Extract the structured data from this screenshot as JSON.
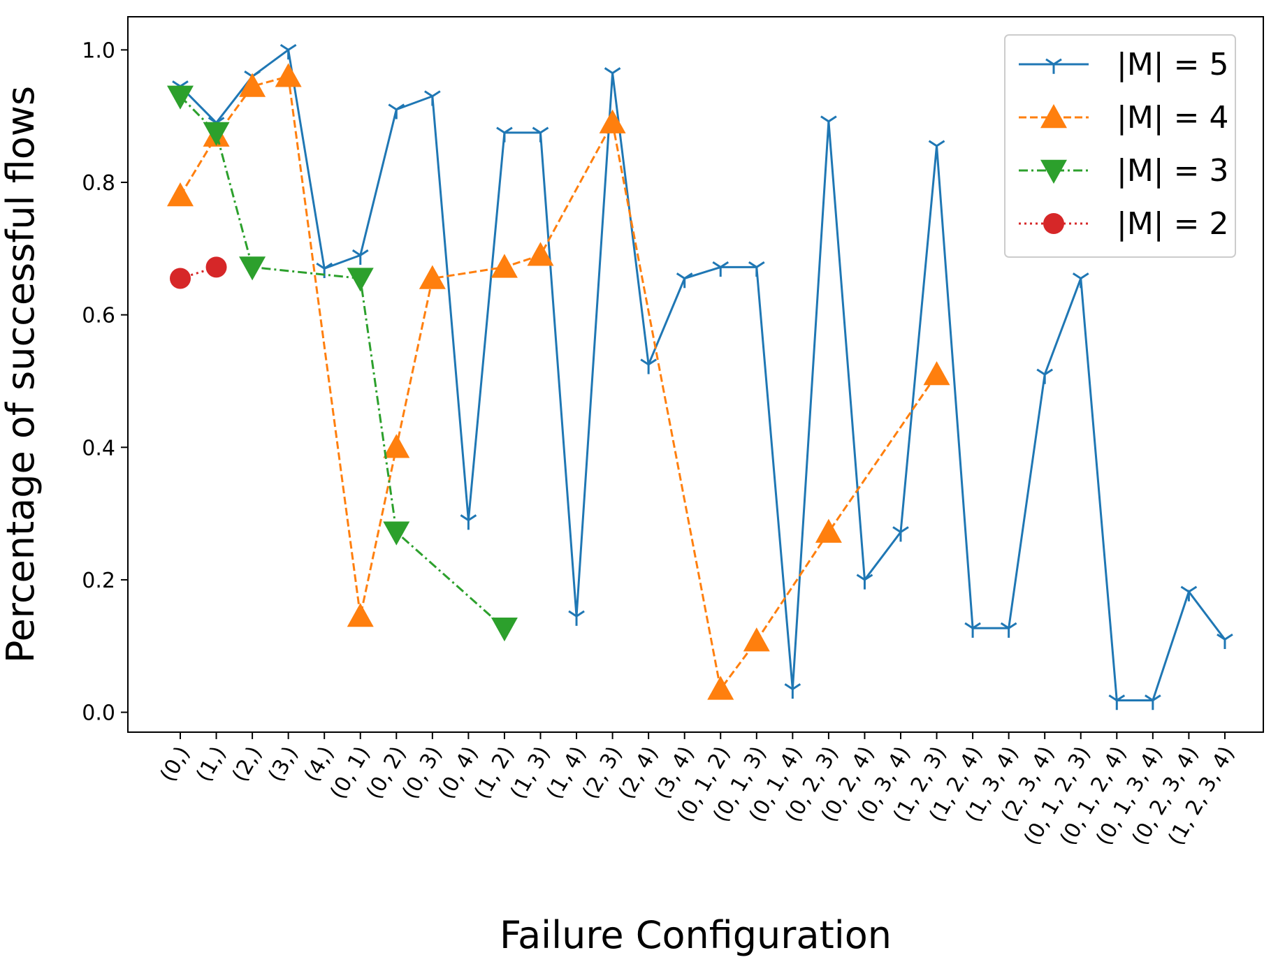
{
  "chart_data": {
    "type": "line",
    "xlabel": "Failure Configuration",
    "ylabel": "Percentage of successful flows",
    "ylim": [
      -0.03,
      1.05
    ],
    "yticks": [
      0.0,
      0.2,
      0.4,
      0.6,
      0.8,
      1.0
    ],
    "ytick_labels": [
      "0.0",
      "0.2",
      "0.4",
      "0.6",
      "0.8",
      "1.0"
    ],
    "grid": false,
    "legend_position": "top-right",
    "categories": [
      "(0,)",
      "(1,)",
      "(2,)",
      "(3,)",
      "(4,)",
      "(0, 1)",
      "(0, 2)",
      "(0, 3)",
      "(0, 4)",
      "(1, 2)",
      "(1, 3)",
      "(1, 4)",
      "(2, 3)",
      "(2, 4)",
      "(3, 4)",
      "(0, 1, 2)",
      "(0, 1, 3)",
      "(0, 1, 4)",
      "(0, 2, 3)",
      "(0, 2, 4)",
      "(0, 3, 4)",
      "(1, 2, 3)",
      "(1, 2, 4)",
      "(1, 3, 4)",
      "(2, 3, 4)",
      "(0, 1, 2, 3)",
      "(0, 1, 2, 4)",
      "(0, 1, 3, 4)",
      "(0, 2, 3, 4)",
      "(1, 2, 3, 4)"
    ],
    "series": [
      {
        "name": "|M| = 5",
        "color": "#1f77b4",
        "linestyle": "solid",
        "marker": "tri_down",
        "values": [
          0.945,
          0.89,
          0.96,
          1.0,
          0.67,
          0.69,
          0.91,
          0.93,
          0.29,
          0.875,
          0.875,
          0.145,
          0.965,
          0.525,
          0.655,
          0.672,
          0.672,
          0.035,
          0.892,
          0.2,
          0.272,
          0.855,
          0.127,
          0.127,
          0.51,
          0.655,
          0.018,
          0.018,
          0.182,
          0.11
        ]
      },
      {
        "name": "|M| = 4",
        "color": "#ff7f0e",
        "linestyle": "dashed",
        "marker": "triangle_up",
        "values": [
          0.78,
          0.87,
          0.945,
          0.96,
          null,
          0.145,
          0.4,
          0.655,
          null,
          0.672,
          0.69,
          null,
          0.89,
          null,
          null,
          0.035,
          0.108,
          null,
          0.272,
          null,
          null,
          0.51,
          null,
          null,
          null,
          null,
          null,
          null,
          null,
          null
        ]
      },
      {
        "name": "|M| = 3",
        "color": "#2ca02c",
        "linestyle": "dashdot",
        "marker": "triangle_down",
        "values": [
          0.93,
          0.875,
          0.672,
          null,
          null,
          0.655,
          0.272,
          null,
          null,
          0.127,
          null,
          null,
          null,
          null,
          null,
          null,
          null,
          null,
          null,
          null,
          null,
          null,
          null,
          null,
          null,
          null,
          null,
          null,
          null,
          null
        ]
      },
      {
        "name": "|M| = 2",
        "color": "#d62728",
        "linestyle": "dotted",
        "marker": "circle",
        "values": [
          0.655,
          0.672,
          null,
          null,
          null,
          null,
          null,
          null,
          null,
          null,
          null,
          null,
          null,
          null,
          null,
          null,
          null,
          null,
          null,
          null,
          null,
          null,
          null,
          null,
          null,
          null,
          null,
          null,
          null,
          null
        ]
      }
    ]
  }
}
